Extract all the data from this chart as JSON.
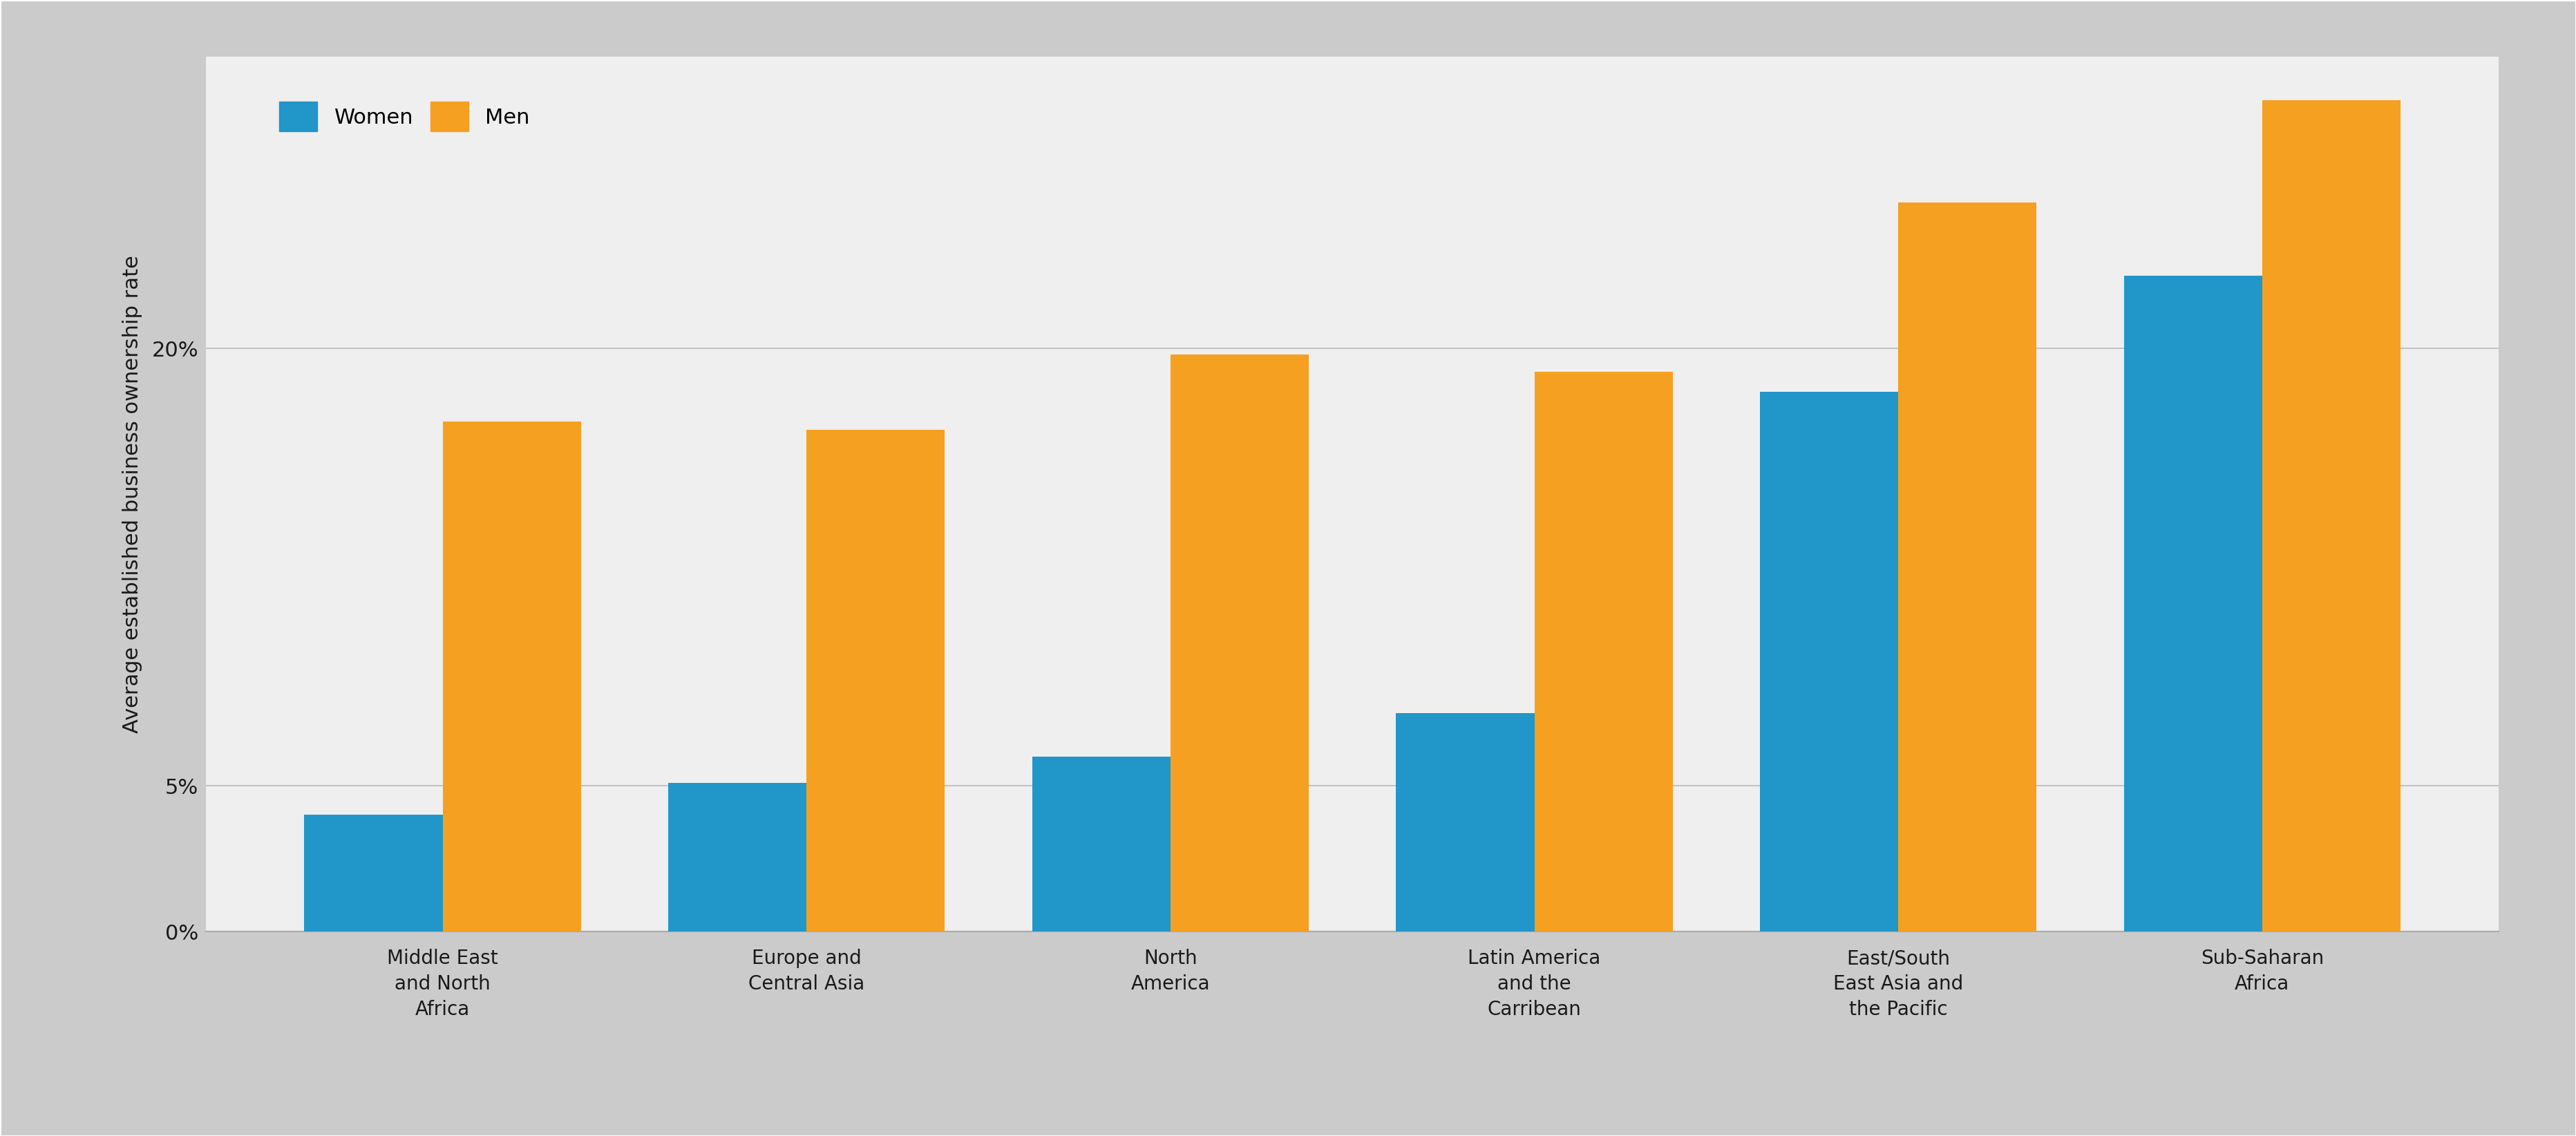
{
  "categories": [
    "Middle East\nand North\nAfrica",
    "Europe and\nCentral Asia",
    "North\nAmerica",
    "Latin America\nand the\nCarribean",
    "East/South\nEast Asia and\nthe Pacific",
    "Sub-Saharan\nAfrica"
  ],
  "women_values": [
    4.0,
    5.1,
    6.0,
    7.5,
    18.5,
    22.5
  ],
  "men_values": [
    17.5,
    17.2,
    19.8,
    19.2,
    25.0,
    28.5
  ],
  "women_color": "#2196C9",
  "men_color": "#F5A020",
  "ylabel": "Average established business ownership rate",
  "yticks": [
    0,
    5,
    20
  ],
  "ytick_labels": [
    "0%",
    "5%",
    "20%"
  ],
  "ylim": [
    0,
    30
  ],
  "outer_bg_color": "#CBCBCB",
  "plot_bg_color": "#EFEFEF",
  "legend_labels": [
    "Women",
    "Men"
  ],
  "bar_width": 0.38,
  "label_fontsize": 22,
  "tick_fontsize": 20,
  "legend_fontsize": 22,
  "grid_color": "#BBBBBB",
  "spine_color": "#AAAAAA"
}
